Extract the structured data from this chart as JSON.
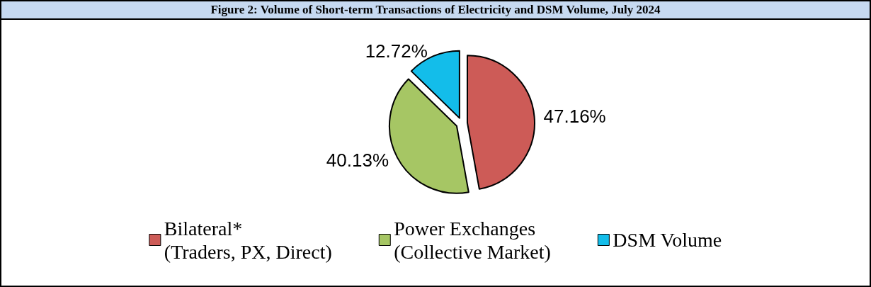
{
  "chart_data": {
    "type": "pie",
    "title": "Figure 2: Volume of Short-term Transactions of Electricity and DSM Volume, July 2024",
    "categories": [
      "Bilateral*\n(Traders, PX, Direct)",
      "Power Exchanges\n(Collective Market)",
      "DSM Volume"
    ],
    "values": [
      47.16,
      40.13,
      12.72
    ],
    "colors": [
      "#cd5b57",
      "#a6c664",
      "#13bdea"
    ],
    "value_labels": [
      "47.16%",
      "40.13%",
      "12.72%"
    ],
    "legend": "bottom"
  }
}
